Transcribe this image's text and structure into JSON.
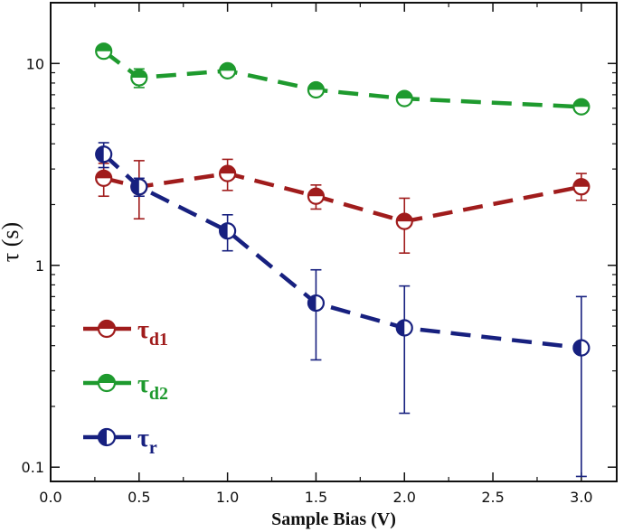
{
  "chart_data": {
    "type": "line",
    "title": "",
    "xlabel": "Sample Bias (V)",
    "ylabel": "τ (s)",
    "xlim": [
      0,
      3.2
    ],
    "ylim": [
      0.085,
      20
    ],
    "yscale": "log",
    "grid": false,
    "legend_position": "bottom-left",
    "x_ticks": [
      "0.0",
      "0.5",
      "1.0",
      "1.5",
      "2.0",
      "2.5",
      "3.0"
    ],
    "y_ticks": [
      "0.1",
      "1",
      "10"
    ],
    "series": [
      {
        "name": "τd1",
        "symbol": "τ",
        "subscript": "d1",
        "color": "#a01c1c",
        "marker": "half-filled-top",
        "x": [
          0.3,
          0.5,
          1.0,
          1.5,
          2.0,
          3.0
        ],
        "values": [
          2.7,
          2.45,
          2.85,
          2.2,
          1.65,
          2.45
        ],
        "err_low": [
          2.2,
          1.7,
          2.35,
          1.9,
          1.15,
          2.1
        ],
        "err_high": [
          3.2,
          3.3,
          3.35,
          2.5,
          2.15,
          2.85
        ]
      },
      {
        "name": "τd2",
        "symbol": "τ",
        "subscript": "d2",
        "color": "#1e9a2e",
        "marker": "half-filled-top",
        "x": [
          0.3,
          0.5,
          1.0,
          1.5,
          2.0,
          3.0
        ],
        "values": [
          11.5,
          8.5,
          9.2,
          7.4,
          6.7,
          6.1
        ],
        "err_low": [
          11.2,
          7.6,
          8.9,
          7.2,
          6.5,
          5.9
        ],
        "err_high": [
          11.8,
          9.4,
          9.5,
          7.6,
          6.9,
          6.3
        ]
      },
      {
        "name": "τr",
        "symbol": "τ",
        "subscript": "r",
        "color": "#17207f",
        "marker": "half-filled-left",
        "x": [
          0.3,
          0.5,
          1.0,
          1.5,
          2.0,
          3.0
        ],
        "values": [
          3.55,
          2.45,
          1.48,
          0.65,
          0.49,
          0.39
        ],
        "err_low": [
          3.05,
          2.2,
          1.18,
          0.34,
          0.185,
          0.09
        ],
        "err_high": [
          4.05,
          2.7,
          1.78,
          0.95,
          0.79,
          0.7
        ]
      }
    ]
  }
}
